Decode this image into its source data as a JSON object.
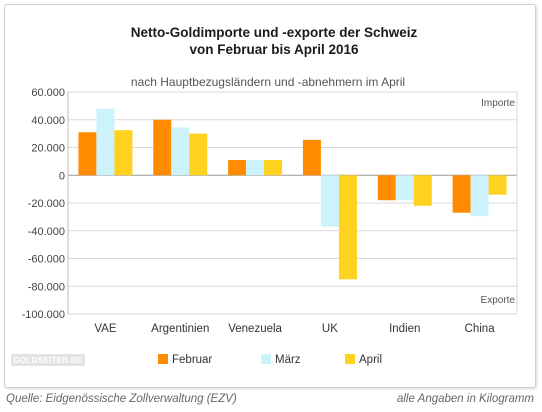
{
  "chart_data": {
    "type": "bar",
    "title": "Netto-Goldimporte und -exporte der Schweiz",
    "title_line2": "von Februar bis April 2016",
    "subtitle": "nach Hauptbezugsländern und -abnehmern im April",
    "categories": [
      "VAE",
      "Argentinien",
      "Venezuela",
      "UK",
      "Indien",
      "China"
    ],
    "series": [
      {
        "name": "Februar",
        "color": "#ff8c00",
        "values": [
          31000,
          40000,
          11000,
          25500,
          -18000,
          -27000
        ]
      },
      {
        "name": "März",
        "color": "#ccf2fc",
        "values": [
          48000,
          34500,
          11000,
          -37000,
          -18000,
          -29500
        ]
      },
      {
        "name": "April",
        "color": "#ffd21f",
        "values": [
          32500,
          30000,
          11000,
          -75000,
          -22000,
          -14000
        ]
      }
    ],
    "ylim": [
      -100000,
      60000
    ],
    "yticks": [
      60000,
      40000,
      20000,
      0,
      -20000,
      -40000,
      -60000,
      -80000,
      -100000
    ],
    "ytick_labels": [
      "60.000",
      "40.000",
      "20.000",
      "0",
      "-20.000",
      "-40.000",
      "-60.000",
      "-80.000",
      "-100.000"
    ],
    "annotations": {
      "top": "Importe",
      "bottom": "Exporte"
    },
    "grid": true,
    "legend_position": "bottom-center"
  },
  "logo": {
    "text": "GOLDSEITEN.DE"
  },
  "footer": {
    "source": "Quelle: Eidgenössische Zollverwaltung (EZV)",
    "unit": "alle Angaben in Kilogramm"
  }
}
